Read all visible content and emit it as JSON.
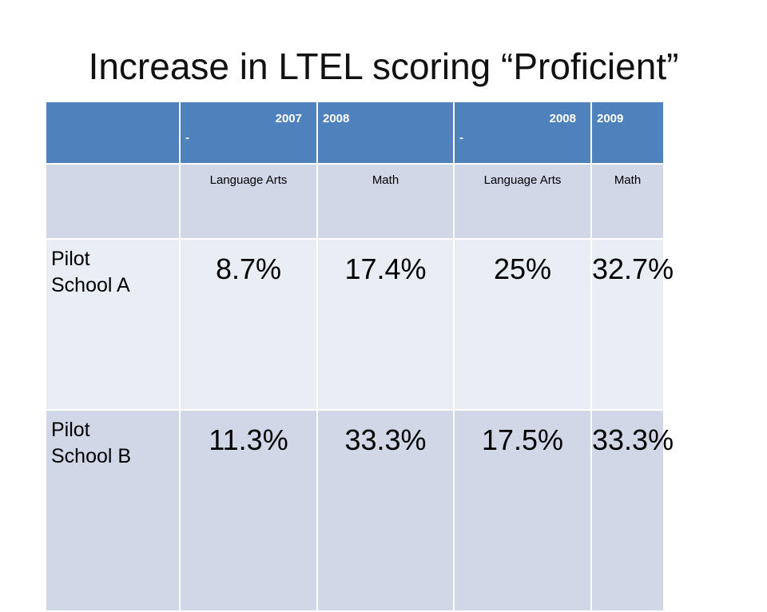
{
  "title": "Increase in LTEL scoring “Proficient”",
  "header": {
    "corner": "",
    "cols": [
      {
        "year": "2007",
        "dash": "-"
      },
      {
        "year": "2008"
      },
      {
        "year": "2008",
        "dash": "-"
      },
      {
        "year": "2009"
      }
    ]
  },
  "subjects": [
    "Language Arts",
    "Math",
    "Language Arts",
    "Math"
  ],
  "rows": [
    {
      "label_line1": "Pilot",
      "label_line2": "School A",
      "values": [
        "8.7%",
        "17.4%",
        "25%",
        "32.7%"
      ]
    },
    {
      "label_line1": "Pilot",
      "label_line2": "School B",
      "values": [
        "11.3%",
        "33.3%",
        "17.5%",
        "33.3%"
      ]
    }
  ],
  "colors": {
    "header_bg": "#4f81bd",
    "row_dark": "#d0d8e8",
    "row_light": "#e9edf4"
  }
}
